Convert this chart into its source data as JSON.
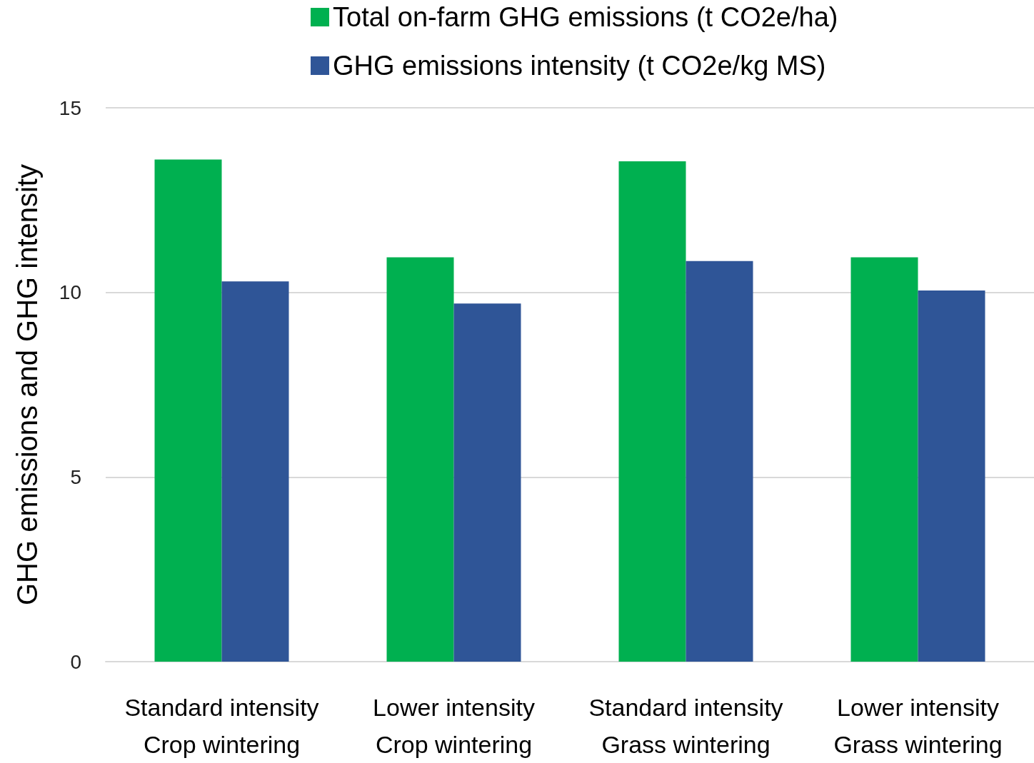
{
  "chart_data": {
    "type": "bar",
    "ylabel": "GHG emissions and GHG intensity",
    "categories": [
      "Standard intensity\nCrop wintering",
      "Lower intensity\nCrop wintering",
      "Standard intensity\nGrass wintering",
      "Lower intensity\nGrass wintering"
    ],
    "series": [
      {
        "name": "Total on-farm GHG emissions (t CO2e/ha)",
        "color": "#00b050",
        "values": [
          13.6,
          10.95,
          13.55,
          10.95
        ]
      },
      {
        "name": "GHG emissions intensity (t CO2e/kg MS)",
        "color": "#2f5597",
        "values": [
          10.3,
          9.7,
          10.85,
          10.05
        ]
      }
    ],
    "ylim": [
      0,
      15
    ],
    "yticks": [
      0,
      5,
      10,
      15
    ],
    "grid": "y",
    "legend": "top"
  }
}
